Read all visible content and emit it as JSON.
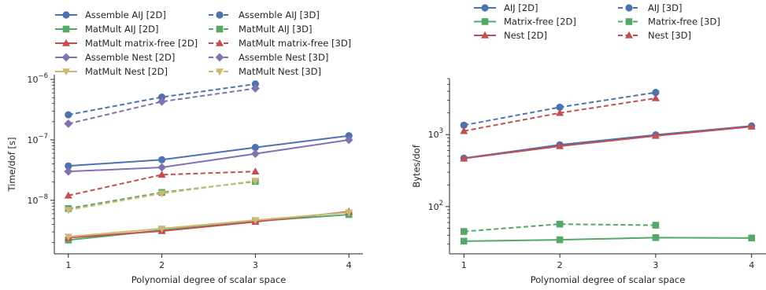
{
  "chart_data": [
    {
      "type": "line",
      "xlabel": "Polynomial degree of scalar space",
      "ylabel": "Time/dof [s]",
      "yscale": "log",
      "ylim": [
        1.3e-09,
        1.2e-06
      ],
      "xlim": [
        0.85,
        4.15
      ],
      "xticks": [
        1,
        2,
        3,
        4
      ],
      "xtick_labels": [
        "1",
        "2",
        "3",
        "4"
      ],
      "yticks": [
        {
          "base": "10",
          "exp": "−8",
          "value": 1e-08
        },
        {
          "base": "10",
          "exp": "−7",
          "value": 1e-07
        },
        {
          "base": "10",
          "exp": "−6",
          "value": 1e-06
        }
      ],
      "grid": false,
      "legend_position": "top-left",
      "series": [
        {
          "name": "Assemble AIJ [2D]",
          "color": "#4c72b0",
          "style": "solid",
          "marker": "circle",
          "x": [
            1,
            2,
            3,
            4
          ],
          "y": [
            3.7e-08,
            4.7e-08,
            7.5e-08,
            1.17e-07
          ]
        },
        {
          "name": "Assemble AIJ [3D]",
          "color": "#4c72b0",
          "style": "dashed",
          "marker": "circle",
          "x": [
            1,
            2,
            3
          ],
          "y": [
            2.6e-07,
            5.1e-07,
            8.4e-07
          ]
        },
        {
          "name": "MatMult AIJ [2D]",
          "color": "#55a868",
          "style": "solid",
          "marker": "square",
          "x": [
            1,
            2,
            3,
            4
          ],
          "y": [
            2.2e-09,
            3.2e-09,
            4.5e-09,
            5.8e-09
          ]
        },
        {
          "name": "MatMult AIJ [3D]",
          "color": "#55a868",
          "style": "dashed",
          "marker": "square",
          "x": [
            1,
            2,
            3
          ],
          "y": [
            7.3e-09,
            1.35e-08,
            2.05e-08
          ]
        },
        {
          "name": "MatMult matrix-free [2D]",
          "color": "#c44e52",
          "style": "solid",
          "marker": "triangle-up",
          "x": [
            1,
            2,
            3,
            4
          ],
          "y": [
            2.4e-09,
            3.1e-09,
            4.4e-09,
            6.5e-09
          ]
        },
        {
          "name": "MatMult matrix-free [3D]",
          "color": "#c44e52",
          "style": "dashed",
          "marker": "triangle-up",
          "x": [
            1,
            2,
            3
          ],
          "y": [
            1.2e-08,
            2.65e-08,
            3e-08
          ]
        },
        {
          "name": "Assemble Nest [2D]",
          "color": "#8172b2",
          "style": "solid",
          "marker": "diamond",
          "x": [
            1,
            2,
            3,
            4
          ],
          "y": [
            3e-08,
            3.5e-08,
            5.9e-08,
            1e-07
          ]
        },
        {
          "name": "Assemble Nest [3D]",
          "color": "#8172b2",
          "style": "dashed",
          "marker": "diamond",
          "x": [
            1,
            2,
            3
          ],
          "y": [
            1.85e-07,
            4.3e-07,
            7.1e-07
          ]
        },
        {
          "name": "MatMult Nest [2D]",
          "color": "#ccb974",
          "style": "solid",
          "marker": "triangle-down",
          "x": [
            1,
            2,
            3,
            4
          ],
          "y": [
            2.5e-09,
            3.4e-09,
            4.7e-09,
            6.3e-09
          ]
        },
        {
          "name": "MatMult Nest [3D]",
          "color": "#ccb974",
          "style": "dashed",
          "marker": "triangle-down",
          "x": [
            1,
            2,
            3
          ],
          "y": [
            6.9e-09,
            1.3e-08,
            2.1e-08
          ]
        }
      ]
    },
    {
      "type": "line",
      "xlabel": "Polynomial degree of scalar space",
      "ylabel": "Bytes/dof",
      "yscale": "log",
      "ylim": [
        22,
        6000
      ],
      "xlim": [
        0.85,
        4.15
      ],
      "xticks": [
        1,
        2,
        3,
        4
      ],
      "xtick_labels": [
        "1",
        "2",
        "3",
        "4"
      ],
      "yticks": [
        {
          "base": "10",
          "exp": "2",
          "value": 100
        },
        {
          "base": "10",
          "exp": "3",
          "value": 1000
        }
      ],
      "grid": false,
      "legend_position": "top-left",
      "series": [
        {
          "name": "AIJ [2D]",
          "color": "#4c72b0",
          "style": "solid",
          "marker": "circle",
          "x": [
            1,
            2,
            3,
            4
          ],
          "y": [
            470,
            720,
            990,
            1320
          ]
        },
        {
          "name": "AIJ [3D]",
          "color": "#4c72b0",
          "style": "dashed",
          "marker": "circle",
          "x": [
            1,
            2,
            3
          ],
          "y": [
            1350,
            2400,
            3850
          ]
        },
        {
          "name": "Matrix-free [2D]",
          "color": "#55a868",
          "style": "solid",
          "marker": "square",
          "x": [
            1,
            2,
            3,
            4
          ],
          "y": [
            33,
            34.5,
            37,
            36.5
          ]
        },
        {
          "name": "Matrix-free [3D]",
          "color": "#55a868",
          "style": "dashed",
          "marker": "square",
          "x": [
            1,
            2,
            3
          ],
          "y": [
            45,
            57,
            55
          ]
        },
        {
          "name": "Nest [2D]",
          "color": "#c44e52",
          "style": "solid",
          "marker": "triangle-up",
          "x": [
            1,
            2,
            3,
            4
          ],
          "y": [
            465,
            690,
            960,
            1290
          ]
        },
        {
          "name": "Nest [3D]",
          "color": "#c44e52",
          "style": "dashed",
          "marker": "triangle-up",
          "x": [
            1,
            2,
            3
          ],
          "y": [
            1120,
            2000,
            3200
          ]
        }
      ]
    }
  ]
}
